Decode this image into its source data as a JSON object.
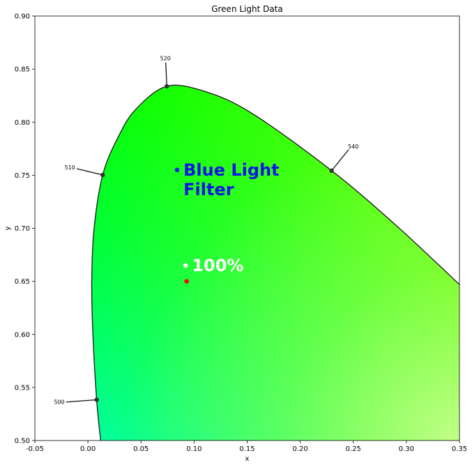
{
  "chart_data": {
    "type": "scatter",
    "title": "Green Light Data",
    "xlabel": "x",
    "ylabel": "y",
    "xlim": [
      -0.05,
      0.35
    ],
    "ylim": [
      0.5,
      0.9
    ],
    "x_ticks": [
      "-0.05",
      "0.00",
      "0.05",
      "0.10",
      "0.15",
      "0.20",
      "0.25",
      "0.30",
      "0.35"
    ],
    "y_ticks": [
      "0.50",
      "0.55",
      "0.60",
      "0.65",
      "0.70",
      "0.75",
      "0.80",
      "0.85",
      "0.90"
    ],
    "x_tick_values": [
      -0.05,
      0.0,
      0.05,
      0.1,
      0.15,
      0.2,
      0.25,
      0.3,
      0.35
    ],
    "y_tick_values": [
      0.5,
      0.55,
      0.6,
      0.65,
      0.7,
      0.75,
      0.8,
      0.85,
      0.9
    ],
    "grid": false,
    "spectral_locus": [
      [
        0.012,
        0.5
      ],
      [
        0.0082,
        0.5384
      ],
      [
        0.0047,
        0.6
      ],
      [
        0.0036,
        0.65
      ],
      [
        0.0058,
        0.7
      ],
      [
        0.0139,
        0.7502
      ],
      [
        0.028,
        0.785
      ],
      [
        0.045,
        0.812
      ],
      [
        0.0743,
        0.8338
      ],
      [
        0.11,
        0.829
      ],
      [
        0.155,
        0.808
      ],
      [
        0.2296,
        0.7543
      ],
      [
        0.29,
        0.703
      ],
      [
        0.35,
        0.647
      ]
    ],
    "wavelength_markers": [
      {
        "label": "500",
        "x": 0.0082,
        "y": 0.5384,
        "label_x": -0.027,
        "label_y": 0.536
      },
      {
        "label": "510",
        "x": 0.0139,
        "y": 0.7502,
        "label_x": -0.017,
        "label_y": 0.757
      },
      {
        "label": "520",
        "x": 0.0743,
        "y": 0.8338,
        "label_x": 0.073,
        "label_y": 0.86
      },
      {
        "label": "540",
        "x": 0.2296,
        "y": 0.7543,
        "label_x": 0.25,
        "label_y": 0.777
      }
    ],
    "points": [
      {
        "label": "Blue Light\nFilter",
        "x": 0.084,
        "y": 0.755,
        "color": "#1428e6"
      },
      {
        "label": "100%",
        "x": 0.092,
        "y": 0.665,
        "color": "#ffffff"
      },
      {
        "label": "",
        "x": 0.093,
        "y": 0.65,
        "color": "#ff0000"
      }
    ],
    "annotations": [
      {
        "text_lines": [
          "Blue Light",
          "Filter"
        ],
        "x": 0.09,
        "y": 0.755,
        "color": "#0a14e6"
      },
      {
        "text_lines": [
          "100%"
        ],
        "x": 0.098,
        "y": 0.665,
        "color": "#ffffff"
      }
    ],
    "colors": {
      "locus_line": "#222222",
      "fill_top": "#00ff00",
      "fill_bottom_left": "#00ffa8",
      "fill_right": "#88ff00",
      "fill_bottom_right": "#b4ff80"
    }
  }
}
